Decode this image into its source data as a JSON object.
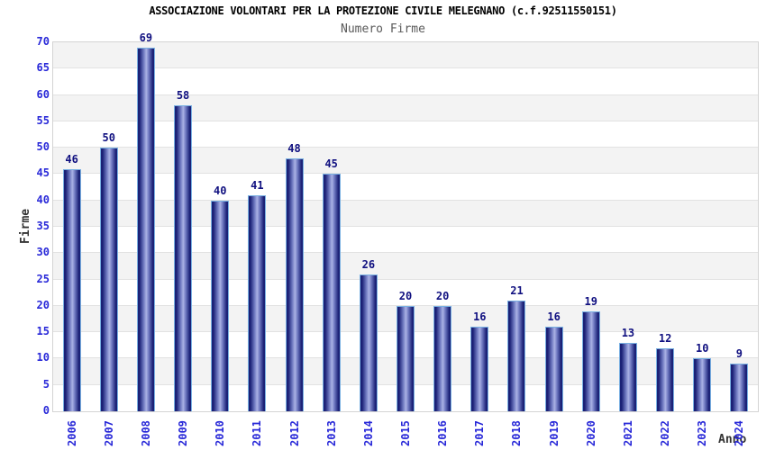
{
  "chart_data": {
    "type": "bar",
    "title": "ASSOCIAZIONE VOLONTARI PER LA PROTEZIONE CIVILE MELEGNANO (c.f.92511550151)",
    "subtitle": "Numero Firme",
    "xlabel": "Anno",
    "ylabel": "Firme",
    "categories": [
      "2006",
      "2007",
      "2008",
      "2009",
      "2010",
      "2011",
      "2012",
      "2013",
      "2014",
      "2015",
      "2016",
      "2017",
      "2018",
      "2019",
      "2020",
      "2021",
      "2022",
      "2023",
      "2024"
    ],
    "values": [
      46,
      50,
      69,
      58,
      40,
      41,
      48,
      45,
      26,
      20,
      20,
      16,
      21,
      16,
      19,
      13,
      12,
      10,
      9
    ],
    "ylim": [
      0,
      70
    ],
    "ytick_step": 5,
    "grid": "horizontal-bands-alternating",
    "legend": "none",
    "colors": {
      "title": "#000000",
      "subtitle": "#5a5a5a",
      "axis_title": "#333333",
      "tick_label_blue": "#2828d8",
      "value_label_navy": "#101080",
      "bar_edge_dark": "#1b2176",
      "bar_mid": "#6d77bf",
      "bar_center_light": "#aab2e5",
      "bar_border_lightblue": "#79b0e2",
      "band_gray": "#f3f3f3",
      "band_white": "#ffffff",
      "gridline": "#e2e2e2",
      "plot_border": "#d4d4d4",
      "background": "#ffffff"
    }
  }
}
